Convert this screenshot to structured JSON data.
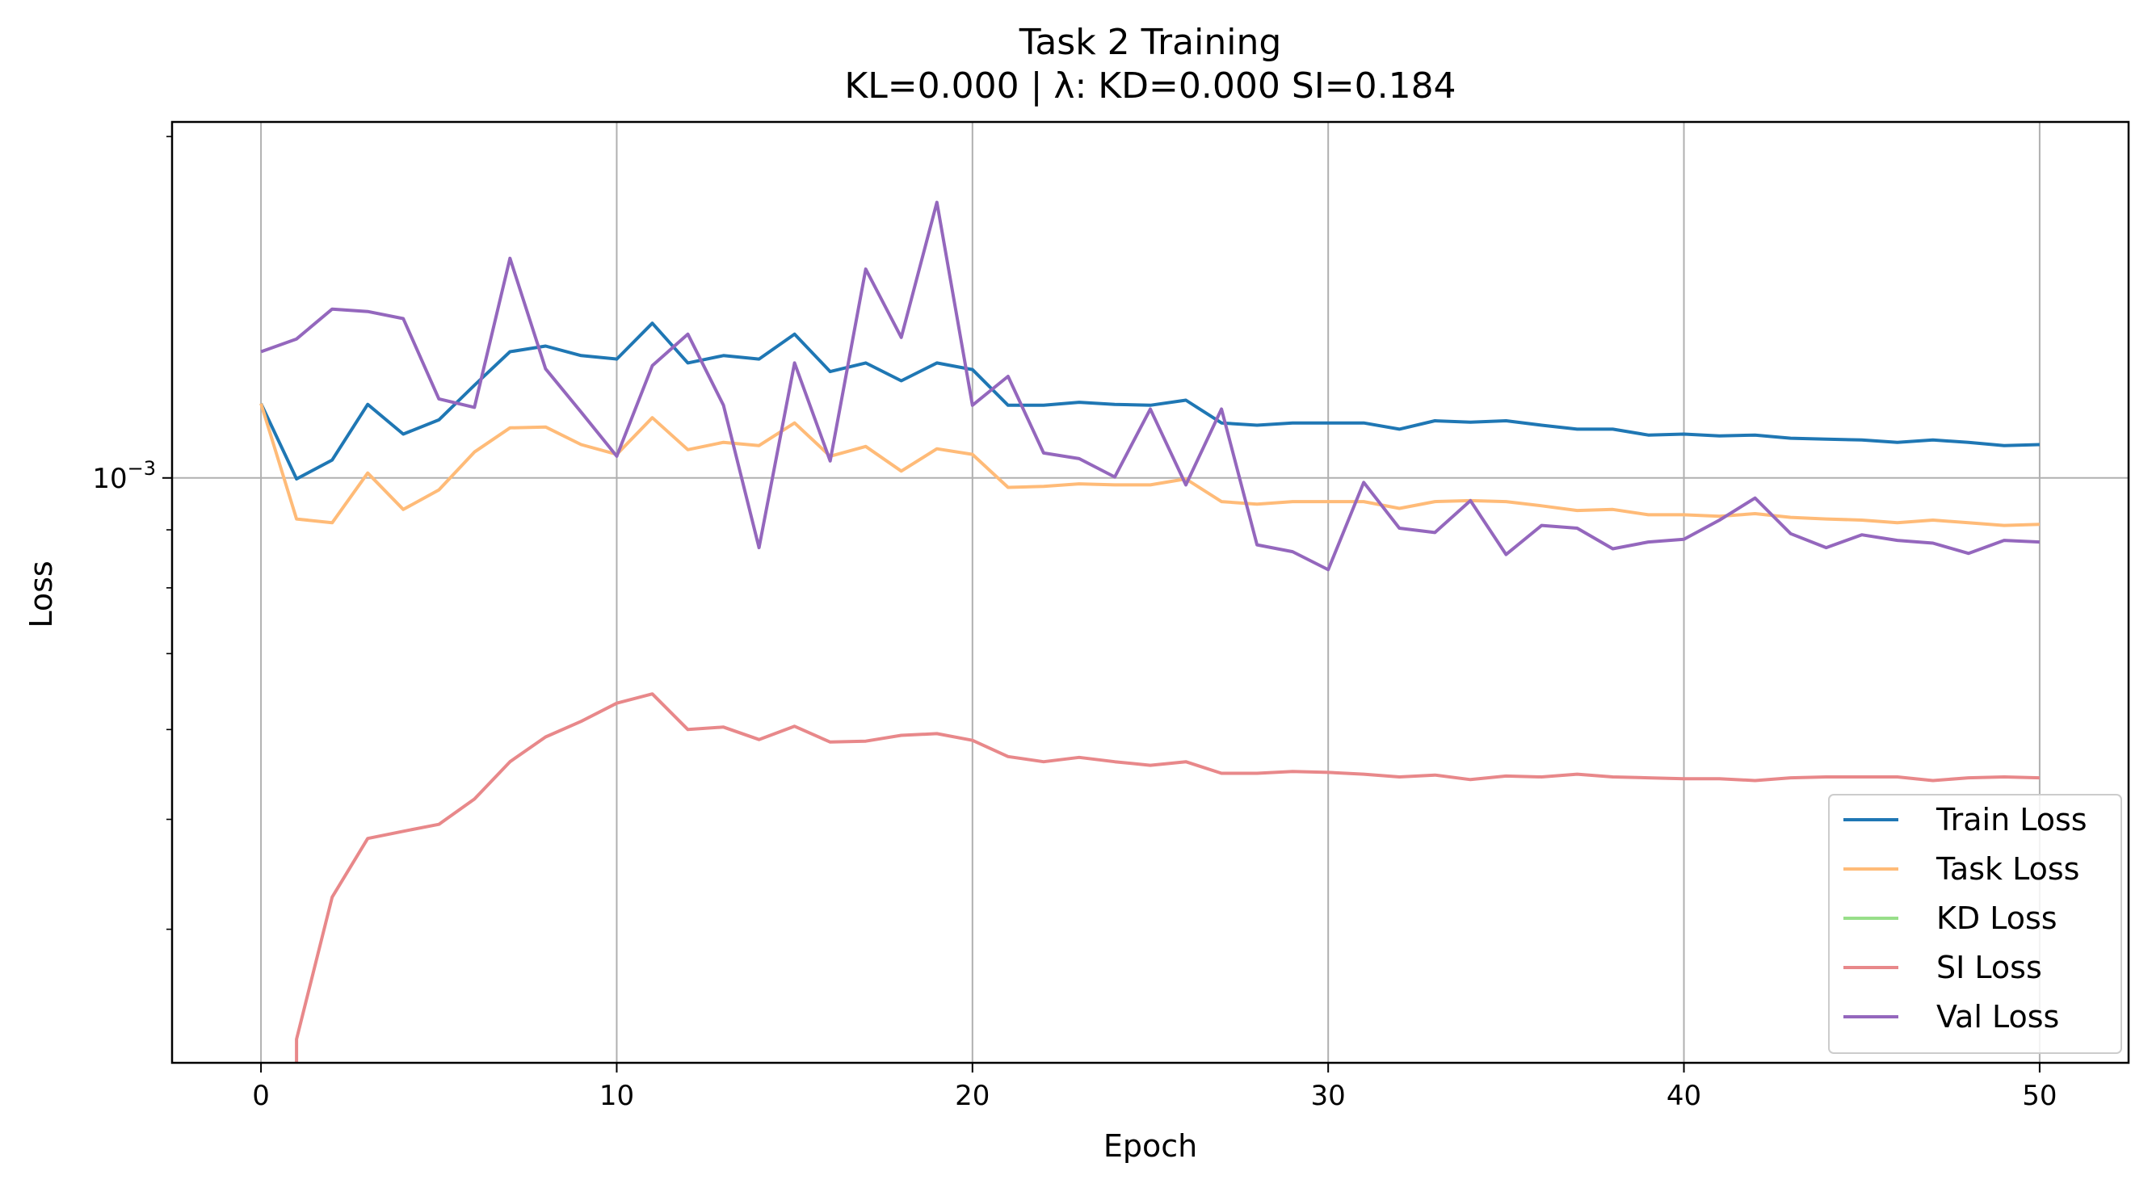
{
  "chart_data": {
    "type": "line",
    "title": "Task 2 Training",
    "subtitle": "KL=0.000 | λ: KD=0.000 SI=0.184",
    "xlabel": "Epoch",
    "ylabel": "Loss",
    "yscale": "log",
    "xlim": [
      -2.5,
      52.5
    ],
    "ylim": [
      0.000305,
      0.00206
    ],
    "xticks": [
      0,
      10,
      20,
      30,
      40,
      50
    ],
    "yticks_major": [
      {
        "value": 0.001,
        "base": "10",
        "exponent": "−3"
      }
    ],
    "grid": true,
    "legend_position": "lower right",
    "series": [
      {
        "name": "Train Loss",
        "color": "#1f77b4",
        "x": [
          0,
          1,
          2,
          3,
          4,
          5,
          6,
          7,
          8,
          9,
          10,
          11,
          12,
          13,
          14,
          15,
          16,
          17,
          18,
          19,
          20,
          21,
          22,
          23,
          24,
          25,
          26,
          27,
          28,
          29,
          30,
          31,
          32,
          33,
          34,
          35,
          36,
          37,
          38,
          39,
          40,
          41,
          42,
          43,
          44,
          45,
          46,
          47,
          48,
          49,
          50
        ],
        "values": [
          0.001163,
          0.000998,
          0.001037,
          0.001161,
          0.001093,
          0.001125,
          0.001207,
          0.001292,
          0.001307,
          0.001282,
          0.001273,
          0.001369,
          0.001263,
          0.001282,
          0.001273,
          0.001339,
          0.001241,
          0.001263,
          0.001218,
          0.001263,
          0.001246,
          0.001159,
          0.001159,
          0.001166,
          0.001161,
          0.001159,
          0.001171,
          0.001118,
          0.001113,
          0.001118,
          0.001118,
          0.001118,
          0.001104,
          0.001123,
          0.00112,
          0.001123,
          0.001113,
          0.001104,
          0.001104,
          0.001091,
          0.001093,
          0.001089,
          0.001091,
          0.001084,
          0.001082,
          0.00108,
          0.001075,
          0.00108,
          0.001075,
          0.001068,
          0.00107
        ]
      },
      {
        "name": "Task Loss",
        "color": "#ffbb78",
        "x": [
          0,
          1,
          2,
          3,
          4,
          5,
          6,
          7,
          8,
          9,
          10,
          11,
          12,
          13,
          14,
          15,
          16,
          17,
          18,
          19,
          20,
          21,
          22,
          23,
          24,
          25,
          26,
          27,
          28,
          29,
          30,
          31,
          32,
          33,
          34,
          35,
          36,
          37,
          38,
          39,
          40,
          41,
          42,
          43,
          44,
          45,
          46,
          47,
          48,
          49,
          50
        ],
        "values": [
          0.001163,
          0.00092,
          0.000913,
          0.00101,
          0.000938,
          0.000976,
          0.001054,
          0.001107,
          0.001109,
          0.00107,
          0.001049,
          0.00113,
          0.001059,
          0.001075,
          0.001068,
          0.001118,
          0.001045,
          0.001066,
          0.001014,
          0.001061,
          0.001049,
          0.000981,
          0.000983,
          0.000988,
          0.000986,
          0.000986,
          0.000998,
          0.000953,
          0.000948,
          0.000953,
          0.000953,
          0.000953,
          0.00094,
          0.000953,
          0.000955,
          0.000953,
          0.000945,
          0.000936,
          0.000938,
          0.000928,
          0.000928,
          0.000925,
          0.00093,
          0.000923,
          0.00092,
          0.000918,
          0.000913,
          0.000918,
          0.000913,
          0.000908,
          0.00091
        ]
      },
      {
        "name": "KD Loss",
        "color": "#98df8a",
        "x": [],
        "values": []
      },
      {
        "name": "SI Loss",
        "color": "#e8888a",
        "x": [
          1,
          2,
          3,
          4,
          5,
          6,
          7,
          8,
          9,
          10,
          11,
          12,
          13,
          14,
          15,
          16,
          17,
          18,
          19,
          20,
          21,
          22,
          23,
          24,
          25,
          26,
          27,
          28,
          29,
          30,
          31,
          32,
          33,
          34,
          35,
          36,
          37,
          38,
          39,
          40,
          41,
          42,
          43,
          44,
          45,
          46,
          47,
          48,
          49,
          50
        ],
        "values": [
          0.00032,
          0.000427,
          0.000481,
          0.000488,
          0.000495,
          0.000521,
          0.000562,
          0.000591,
          0.00061,
          0.000633,
          0.000645,
          0.0006,
          0.000603,
          0.000588,
          0.000604,
          0.000585,
          0.000586,
          0.000593,
          0.000595,
          0.000587,
          0.000568,
          0.000562,
          0.000567,
          0.000562,
          0.000558,
          0.000562,
          0.000549,
          0.000549,
          0.000551,
          0.00055,
          0.000548,
          0.000545,
          0.000547,
          0.000542,
          0.000546,
          0.000545,
          0.000548,
          0.000545,
          0.000544,
          0.000543,
          0.000543,
          0.000541,
          0.000544,
          0.000545,
          0.000545,
          0.000545,
          0.000541,
          0.000544,
          0.000545,
          0.000544
        ]
      },
      {
        "name": "Val Loss",
        "color": "#9467bd",
        "x": [
          0,
          1,
          2,
          3,
          4,
          5,
          6,
          7,
          8,
          9,
          10,
          11,
          12,
          13,
          14,
          15,
          16,
          17,
          18,
          19,
          20,
          21,
          22,
          23,
          24,
          25,
          26,
          27,
          28,
          29,
          30,
          31,
          32,
          33,
          34,
          35,
          36,
          37,
          38,
          39,
          40,
          41,
          42,
          43,
          44,
          45,
          46,
          47,
          48,
          49,
          50
        ],
        "values": [
          0.001292,
          0.001326,
          0.001409,
          0.001402,
          0.001382,
          0.001174,
          0.001154,
          0.001562,
          0.001248,
          0.001143,
          0.001045,
          0.001256,
          0.001339,
          0.001159,
          0.000868,
          0.001263,
          0.001035,
          0.001528,
          0.00133,
          0.00175,
          0.001159,
          0.001229,
          0.001052,
          0.00104,
          0.001002,
          0.00115,
          0.000986,
          0.00115,
          0.000873,
          0.000861,
          0.00083,
          0.000991,
          0.000903,
          0.000895,
          0.000955,
          0.000856,
          0.000908,
          0.000903,
          0.000866,
          0.000878,
          0.000883,
          0.000918,
          0.00096,
          0.000893,
          0.000868,
          0.000891,
          0.000881,
          0.000876,
          0.000858,
          0.000881,
          0.000878
        ]
      }
    ]
  }
}
